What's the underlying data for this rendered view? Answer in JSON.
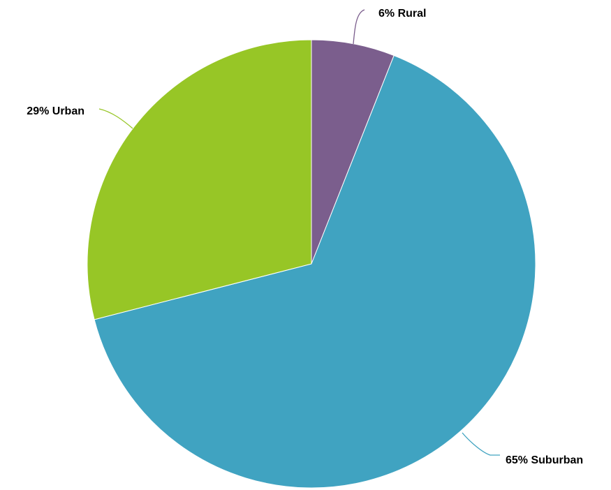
{
  "chart_data": {
    "type": "pie",
    "title": "",
    "start_angle_deg": 0,
    "direction": "clockwise",
    "slices": [
      {
        "name": "Rural",
        "value": 6,
        "label": "6% Rural",
        "color": "#7b5e8d"
      },
      {
        "name": "Suburban",
        "value": 65,
        "label": "65% Suburban",
        "color": "#40a3c1"
      },
      {
        "name": "Urban",
        "value": 29,
        "label": "29% Urban",
        "color": "#97c626"
      }
    ]
  }
}
